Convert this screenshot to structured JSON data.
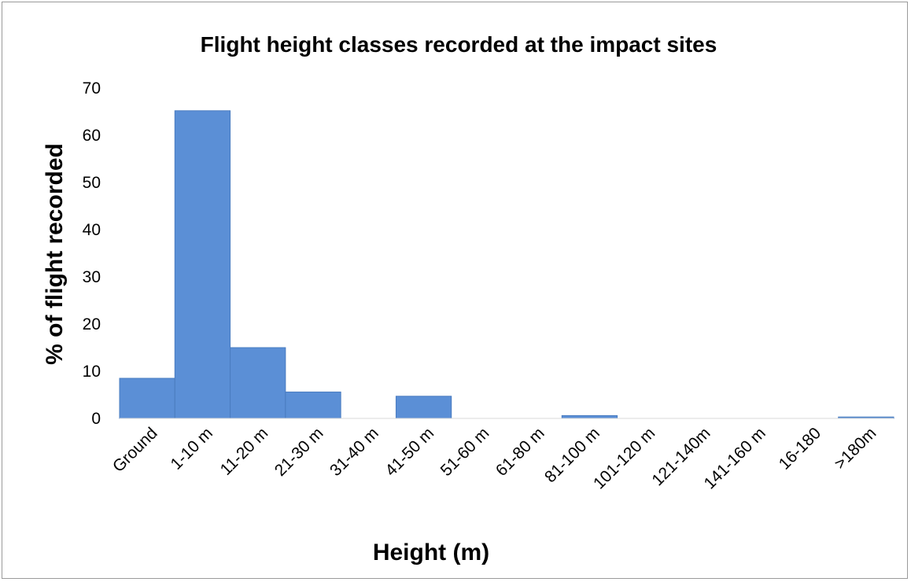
{
  "chart_data": {
    "type": "bar",
    "title": "Flight height classes recorded at the impact sites",
    "xlabel": "Height (m)",
    "ylabel": "% of flight recorded",
    "categories": [
      "Ground",
      "1-10  m",
      "11-20 m",
      "21-30 m",
      "31-40 m",
      "41-50 m",
      "51-60 m",
      "61-80 m",
      "81-100 m",
      "101-120 m",
      "121-140m",
      "141-160 m",
      "16-180",
      ">180m"
    ],
    "values": [
      8.5,
      65.2,
      15.0,
      5.6,
      0,
      4.7,
      0,
      0,
      0.6,
      0,
      0,
      0,
      0,
      0.3
    ],
    "ylim": [
      0,
      70
    ],
    "yticks": [
      0,
      10,
      20,
      30,
      40,
      50,
      60,
      70
    ],
    "grid": false,
    "legend": "none",
    "bar_color": "#5b8fd6",
    "bar_edge_color": "#4a7cc0"
  }
}
